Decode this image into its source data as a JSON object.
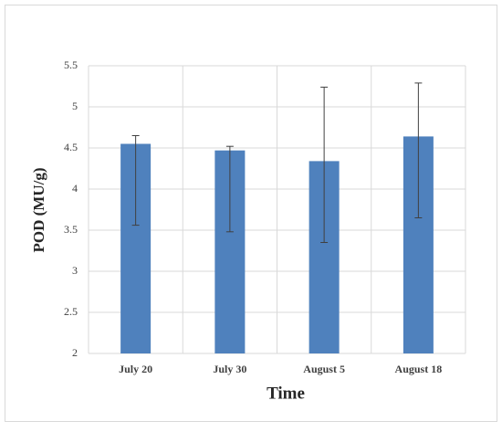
{
  "chart_data": {
    "type": "bar",
    "x_label": "Time",
    "y_label": "POD (MU/g)",
    "categories": [
      "July 20",
      "July 30",
      "August 5",
      "August 18"
    ],
    "values": [
      4.55,
      4.47,
      4.34,
      4.64
    ],
    "error_minus": [
      0.99,
      0.99,
      0.99,
      0.99
    ],
    "error_plus": [
      0.1,
      0.05,
      0.9,
      0.65
    ],
    "color": "#4f81bd",
    "ylim": [
      2,
      5.5
    ],
    "yticks": [
      2,
      2.5,
      3,
      3.5,
      4,
      4.5,
      5,
      5.5
    ],
    "grid": true
  }
}
